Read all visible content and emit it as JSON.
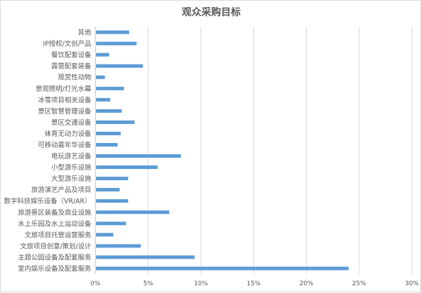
{
  "chart_data": {
    "type": "bar",
    "orientation": "horizontal",
    "title": "观众采购目标",
    "categories": [
      "其他",
      "IP授权/文创产品",
      "餐饮配套设备",
      "露营配套装备",
      "观赏性动物",
      "景观照明/灯光水幕",
      "冰雪项目相关设备",
      "景区智慧管理设备",
      "景区交通设备",
      "体育无动力设备",
      "可移动嘉年华设备",
      "电玩游艺设备",
      "小型游乐设施",
      "大型游乐设施",
      "旅游演艺产品及项目",
      "数字科技娱乐设备（VR/AR）",
      "旅游景区装备及商业设施",
      "水上乐园及水上运动设备",
      "文旅项目托管运营服务",
      "文旅项目创意/策划/设计",
      "主题公园设备及配套服务",
      "室内娱乐设备及配套服务"
    ],
    "values": [
      3.2,
      3.9,
      1.3,
      4.5,
      0.9,
      2.7,
      1.4,
      2.5,
      3.7,
      2.4,
      2.1,
      8.1,
      5.9,
      3.1,
      2.3,
      3.1,
      7.0,
      2.9,
      1.7,
      4.3,
      9.4,
      24.0
    ],
    "xlim": [
      0,
      30
    ],
    "xticks": [
      "0%",
      "5%",
      "10%",
      "15%",
      "20%",
      "25%",
      "30%"
    ],
    "xgrid": true,
    "legend": "none",
    "bar_color": "#5b9bd5",
    "grid_color": "#d9d9d9",
    "text_color": "#595959"
  }
}
